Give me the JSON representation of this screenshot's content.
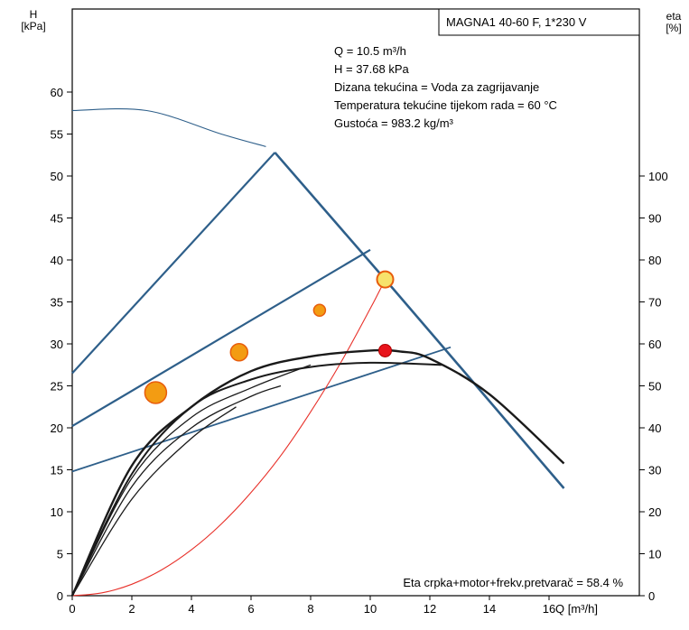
{
  "chart_data": {
    "type": "line",
    "title": "MAGNA1 40-60 F, 1*230 V",
    "y_left_label": {
      "unit_line1": "H",
      "unit_line2": "[kPa]"
    },
    "y_right_label": {
      "unit_line1": "eta",
      "unit_line2": "[%]"
    },
    "x_label": "Q [m³/h]",
    "x_lim": [
      0,
      18
    ],
    "y_left_lim": [
      0,
      65
    ],
    "y_right_lim": [
      0,
      130
    ],
    "x_ticks": [
      "0",
      "2",
      "4",
      "6",
      "8",
      "10",
      "12",
      "14",
      "16"
    ],
    "y_left_ticks": [
      "0",
      "5",
      "10",
      "15",
      "20",
      "25",
      "30",
      "35",
      "40",
      "45",
      "50",
      "55",
      "60"
    ],
    "y_right_ticks": [
      "0",
      "10",
      "20",
      "30",
      "40",
      "50",
      "60",
      "70",
      "80",
      "90",
      "100"
    ],
    "info_lines": [
      "Q = 10.5 m³/h",
      "H = 37.68 kPa",
      "Dizana tekućina = Voda za zagrijavanje",
      "Temperatura tekućine tijekom rada = 60 °C",
      "Gustoća = 983.2 kg/m³"
    ],
    "efficiency_note": "Eta crpka+motor+frekv.pretvarač = 58.4 %",
    "colors": {
      "pump_lines": "#2e5f8a",
      "eta_curves": "#1a1a1a",
      "system_curve": "#e8312a",
      "marker_fill": "#f39c12",
      "marker_edge": "#e85d0c",
      "duty_point": "#e8141c"
    },
    "series": [
      {
        "kind": "max-curve",
        "axis": "left",
        "x": [
          0,
          2.5,
          5.0,
          6.5
        ],
        "y": [
          57.8,
          57.8,
          55,
          53.5
        ]
      },
      {
        "kind": "proportional-pressure-max",
        "axis": "left",
        "x": [
          0,
          6.8
        ],
        "y": [
          26.5,
          52.8
        ]
      },
      {
        "kind": "max-limit",
        "axis": "left",
        "x": [
          6.8,
          10.5,
          16.5
        ],
        "y": [
          52.8,
          37.68,
          12.8
        ]
      },
      {
        "kind": "proportional-pressure-mid",
        "axis": "left",
        "x": [
          0,
          10.0
        ],
        "y": [
          20.2,
          41.2
        ]
      },
      {
        "kind": "proportional-pressure-low",
        "axis": "left",
        "x": [
          0,
          12.7
        ],
        "y": [
          14.8,
          29.6
        ]
      },
      {
        "kind": "system-curve",
        "axis": "left",
        "x": [
          0,
          1,
          2,
          3,
          4,
          5,
          6,
          7,
          8,
          9,
          10,
          10.5
        ],
        "y": [
          0,
          0.34,
          1.37,
          3.08,
          5.47,
          8.54,
          12.3,
          16.7,
          21.9,
          27.7,
          34.2,
          37.68
        ]
      },
      {
        "kind": "eta-curve",
        "axis": "right",
        "x": [
          0,
          2,
          4,
          6,
          8,
          10,
          11,
          12,
          14,
          16.5
        ],
        "y": [
          0,
          31,
          45,
          53.5,
          57,
          58.4,
          58.2,
          56.5,
          48,
          31.5
        ]
      },
      {
        "kind": "eta-curve",
        "axis": "right",
        "x": [
          0,
          2,
          4,
          6,
          8,
          10,
          12.4
        ],
        "y": [
          0,
          29,
          45,
          51.5,
          54.5,
          55.5,
          55
        ]
      },
      {
        "kind": "eta-curve",
        "axis": "right",
        "x": [
          0,
          2,
          4,
          6,
          8
        ],
        "y": [
          0,
          28,
          42.5,
          49.5,
          55
        ]
      },
      {
        "kind": "eta-curve",
        "axis": "right",
        "x": [
          0,
          2,
          4,
          6,
          7
        ],
        "y": [
          0,
          26,
          40,
          47.5,
          50
        ]
      },
      {
        "kind": "eta-curve",
        "axis": "right",
        "x": [
          0,
          2,
          4,
          5.5
        ],
        "y": [
          0,
          23,
          37.5,
          45
        ]
      }
    ],
    "markers": [
      {
        "x": 2.8,
        "y": 24.2,
        "size": "large"
      },
      {
        "x": 5.6,
        "y": 29.0,
        "size": "medium"
      },
      {
        "x": 8.3,
        "y": 34.0,
        "size": "small"
      },
      {
        "x": 10.5,
        "y": 37.68,
        "size": "duty-ring"
      },
      {
        "x": 10.5,
        "y": 29.2,
        "size": "eta-point"
      }
    ]
  }
}
